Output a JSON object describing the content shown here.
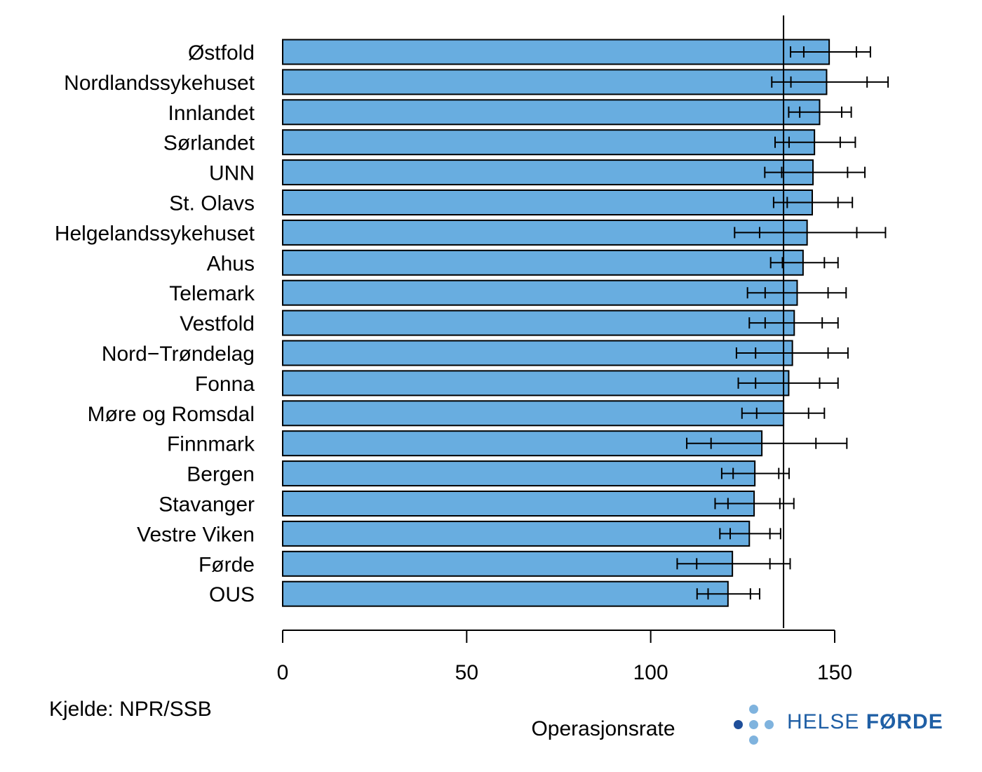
{
  "chart_data": {
    "type": "bar",
    "orientation": "horizontal",
    "categories": [
      "Østfold",
      "Nordlandssykehuset",
      "Innlandet",
      "Sørlandet",
      "UNN",
      "St. Olavs",
      "Helgelandssykehuset",
      "Ahus",
      "Telemark",
      "Vestfold",
      "Nord−Trøndelag",
      "Fonna",
      "Møre og Romsdal",
      "Finnmark",
      "Bergen",
      "Stavanger",
      "Vestre Viken",
      "Førde",
      "OUS"
    ],
    "values": [
      148.5,
      147.8,
      145.9,
      144.5,
      144.1,
      143.9,
      142.5,
      141.4,
      139.8,
      139.0,
      138.5,
      137.5,
      136.1,
      130.2,
      128.3,
      128.1,
      126.8,
      122.2,
      121.0
    ],
    "error_bars": [
      {
        "outer": [
          138.0,
          159.7
        ],
        "inner": [
          141.6,
          155.9
        ]
      },
      {
        "outer": [
          132.9,
          164.5
        ],
        "inner": [
          138.1,
          158.8
        ]
      },
      {
        "outer": [
          137.5,
          154.5
        ],
        "inner": [
          140.5,
          151.9
        ]
      },
      {
        "outer": [
          133.8,
          155.6
        ],
        "inner": [
          137.6,
          151.5
        ]
      },
      {
        "outer": [
          131.0,
          158.2
        ],
        "inner": [
          135.6,
          153.5
        ]
      },
      {
        "outer": [
          133.4,
          154.8
        ],
        "inner": [
          137.1,
          150.9
        ]
      },
      {
        "outer": [
          122.8,
          163.8
        ],
        "inner": [
          129.6,
          156.0
        ]
      },
      {
        "outer": [
          132.6,
          150.9
        ],
        "inner": [
          135.8,
          147.2
        ]
      },
      {
        "outer": [
          126.3,
          153.1
        ],
        "inner": [
          131.1,
          148.2
        ]
      },
      {
        "outer": [
          126.8,
          150.9
        ],
        "inner": [
          131.1,
          146.6
        ]
      },
      {
        "outer": [
          123.3,
          153.6
        ],
        "inner": [
          128.5,
          148.2
        ]
      },
      {
        "outer": [
          123.8,
          150.9
        ],
        "inner": [
          128.5,
          145.9
        ]
      },
      {
        "outer": [
          124.8,
          147.2
        ],
        "inner": [
          128.8,
          142.9
        ]
      },
      {
        "outer": [
          109.8,
          153.3
        ],
        "inner": [
          116.4,
          144.9
        ]
      },
      {
        "outer": [
          119.3,
          137.6
        ],
        "inner": [
          122.4,
          134.8
        ]
      },
      {
        "outer": [
          117.5,
          138.9
        ],
        "inner": [
          121.0,
          135.1
        ]
      },
      {
        "outer": [
          118.8,
          135.3
        ],
        "inner": [
          121.6,
          132.4
        ]
      },
      {
        "outer": [
          107.2,
          137.9
        ],
        "inner": [
          112.5,
          132.4
        ]
      },
      {
        "outer": [
          112.6,
          129.6
        ],
        "inner": [
          115.6,
          127.1
        ]
      }
    ],
    "reference_line": 136.1,
    "xlim": [
      0,
      150
    ],
    "xticks": [
      0,
      50,
      100,
      150
    ],
    "xlabel": "Operasjonsrate",
    "grid": false,
    "colors": {
      "bar": "#68ade0",
      "bar_edge": "#000000",
      "line": "#000000"
    }
  },
  "source_note": "Kjelde: NPR/SSB",
  "logo": {
    "text_light": "HELSE ",
    "text_bold": "FØRDE",
    "color": "#1f5fa5",
    "dot_color": "#7fb3de",
    "dot_dark": "#1f4f9a"
  }
}
